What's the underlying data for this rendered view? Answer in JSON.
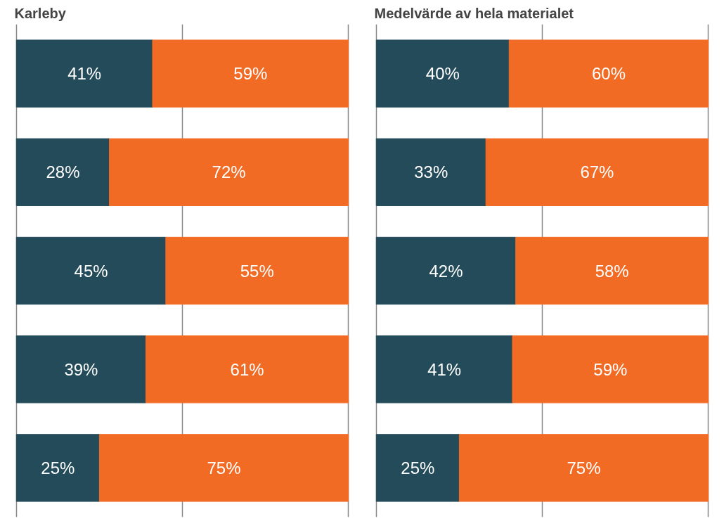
{
  "chart_data": [
    {
      "type": "bar",
      "orientation": "horizontal",
      "stacked": true,
      "title": "Karleby",
      "categories": [
        null,
        null,
        null,
        null,
        null
      ],
      "series": [
        {
          "color": "#234b5a",
          "values": [
            41,
            28,
            45,
            39,
            25
          ],
          "value_labels": [
            "41%",
            "28%",
            "45%",
            "39%",
            "25%"
          ]
        },
        {
          "color": "#f26b24",
          "values": [
            59,
            72,
            55,
            61,
            75
          ],
          "value_labels": [
            "59%",
            "72%",
            "55%",
            "61%",
            "75%"
          ]
        }
      ],
      "xlim": [
        0,
        100
      ],
      "xticks": [
        {
          "value": 0,
          "label": null
        },
        {
          "value": 50,
          "label": null
        },
        {
          "value": 100,
          "label": null
        }
      ],
      "grid": "x",
      "tick_labels": false
    },
    {
      "type": "bar",
      "orientation": "horizontal",
      "stacked": true,
      "title": "Medelvärde av hela materialet",
      "categories": [
        null,
        null,
        null,
        null,
        null
      ],
      "series": [
        {
          "color": "#234b5a",
          "values": [
            40,
            33,
            42,
            41,
            25
          ],
          "value_labels": [
            "40%",
            "33%",
            "42%",
            "41%",
            "25%"
          ]
        },
        {
          "color": "#f26b24",
          "values": [
            60,
            67,
            58,
            59,
            75
          ],
          "value_labels": [
            "60%",
            "67%",
            "58%",
            "59%",
            "75%"
          ]
        }
      ],
      "xlim": [
        0,
        100
      ],
      "xticks": [
        {
          "value": 0,
          "label": null
        },
        {
          "value": 50,
          "label": null
        },
        {
          "value": 100,
          "label": null
        }
      ],
      "grid": "x",
      "tick_labels": false
    }
  ]
}
